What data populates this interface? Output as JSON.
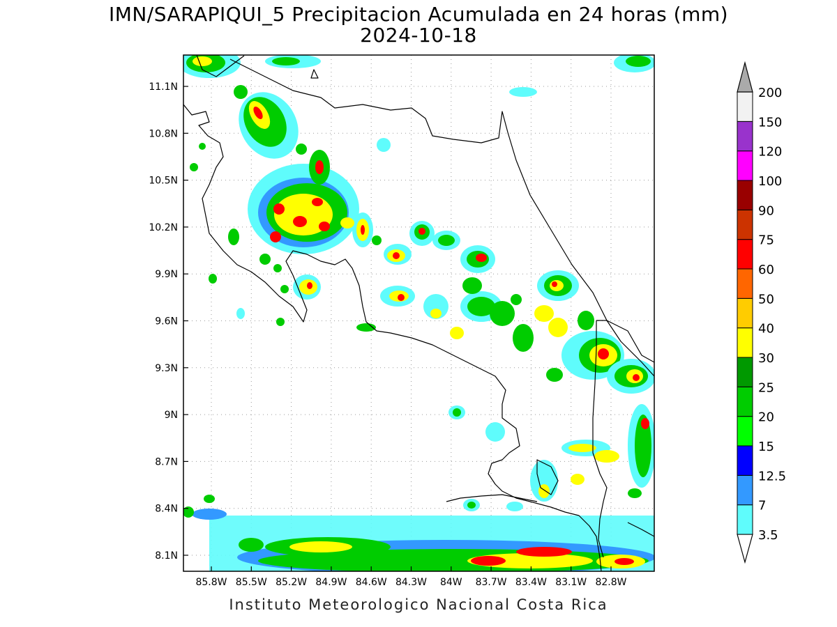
{
  "title": {
    "line1": "IMN/SARAPIQUI_5 Precipitacion Acumulada en 24 horas (mm)",
    "line2": "2024-10-18"
  },
  "footer": "Instituto Meteorologico Nacional Costa Rica",
  "axes": {
    "lat_labels": [
      "11.1N",
      "10.8N",
      "10.5N",
      "10.2N",
      "9.9N",
      "9.6N",
      "9.3N",
      "9N",
      "8.7N",
      "8.4N",
      "8.1N"
    ],
    "lon_labels": [
      "85.8W",
      "85.5W",
      "85.2W",
      "84.9W",
      "84.6W",
      "84.3W",
      "84W",
      "83.7W",
      "83.4W",
      "83.1W",
      "82.8W"
    ]
  },
  "colorbar": {
    "labels": [
      "3.5",
      "7",
      "12.5",
      "15",
      "20",
      "25",
      "30",
      "40",
      "50",
      "60",
      "75",
      "90",
      "100",
      "120",
      "150",
      "200"
    ],
    "colors": [
      "#5ffcfc",
      "#3399ff",
      "#0000ff",
      "#00ff00",
      "#00cc00",
      "#009900",
      "#ffff00",
      "#ffcc00",
      "#ff6600",
      "#ff0000",
      "#cc3300",
      "#990000",
      "#ff00ff",
      "#9933cc",
      "#f2f2f2",
      "#aaaaaa"
    ]
  }
}
